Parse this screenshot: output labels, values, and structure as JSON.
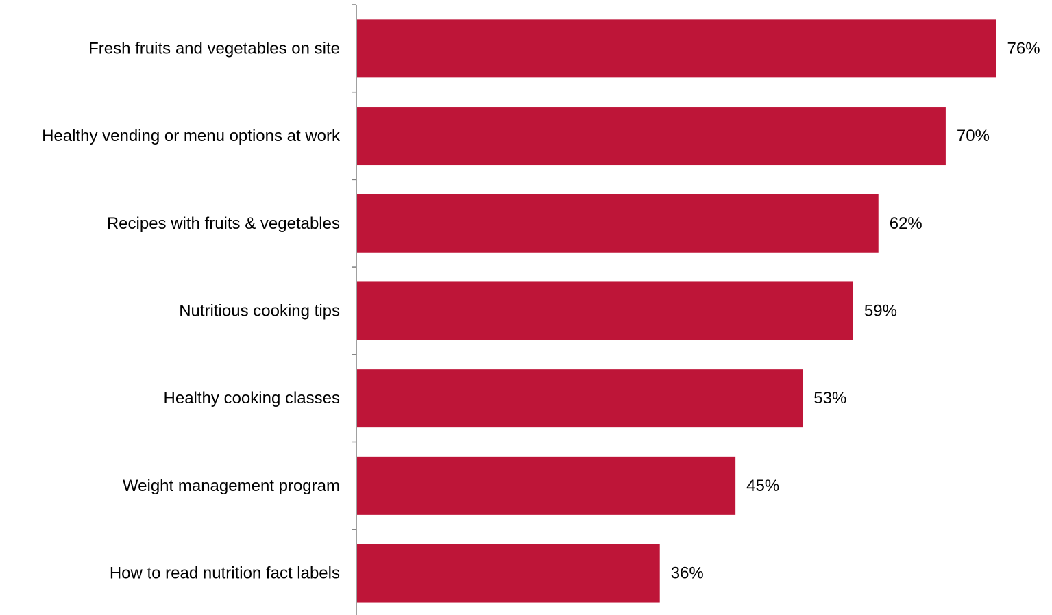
{
  "chart_data": {
    "type": "bar",
    "orientation": "horizontal",
    "categories": [
      "Fresh fruits and vegetables on site",
      "Healthy vending or menu options at work",
      "Recipes with fruits & vegetables",
      "Nutritious cooking tips",
      "Healthy cooking classes",
      "Weight management program",
      "How to read nutrition fact labels"
    ],
    "values": [
      76,
      70,
      62,
      59,
      53,
      45,
      36
    ],
    "value_labels": [
      "76%",
      "70%",
      "62%",
      "59%",
      "53%",
      "45%",
      "36%"
    ],
    "unit": "%",
    "title": "",
    "xlabel": "",
    "ylabel": "",
    "xlim": [
      0,
      100
    ],
    "grid": false,
    "legend": "none",
    "bar_color": "#BE1538",
    "axis_color": "#808080"
  }
}
